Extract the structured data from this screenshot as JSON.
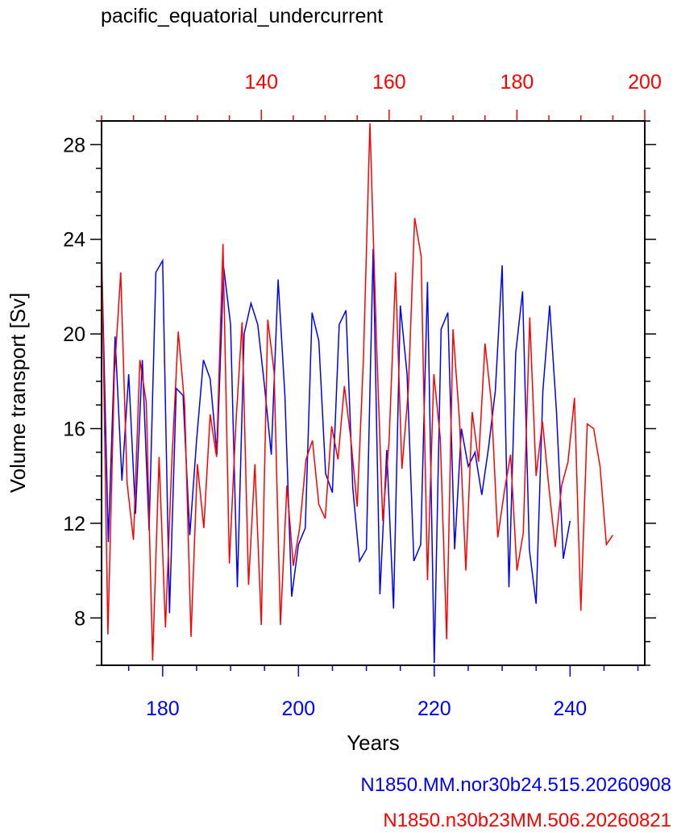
{
  "chart_data": {
    "type": "line",
    "title": "pacific_equatorial_undercurrent",
    "xlabel": "Years",
    "ylabel": "Volume transport [Sv]",
    "ylim": [
      6,
      29
    ],
    "y_ticks": [
      8,
      12,
      16,
      20,
      24,
      28
    ],
    "grid": false,
    "colors": {
      "bottom": "#0000ff",
      "top": "#ff0000",
      "axes": "#000000"
    },
    "bottom_axis": {
      "lim": [
        171,
        251
      ],
      "ticks": [
        180,
        200,
        220,
        240
      ]
    },
    "top_axis": {
      "lim": [
        115,
        200
      ],
      "ticks": [
        140,
        160,
        180,
        200
      ]
    },
    "series": [
      {
        "name": "N1850.MM.nor30b24.515.20260908",
        "axis": "bottom",
        "x_start": 171,
        "values": [
          23.5,
          11.2,
          19.9,
          13.8,
          18.3,
          12.4,
          18.9,
          11.7,
          22.6,
          23.1,
          8.2,
          17.7,
          17.4,
          11.5,
          15.5,
          18.9,
          18.1,
          14.9,
          22.8,
          20.4,
          9.3,
          20.0,
          21.3,
          20.4,
          17.8,
          14.9,
          22.3,
          17.4,
          8.9,
          11.1,
          11.8,
          20.9,
          19.7,
          14.1,
          13.3,
          20.4,
          21.0,
          13.5,
          10.4,
          10.9,
          23.6,
          9.0,
          15.1,
          8.4,
          21.2,
          18.3,
          10.4,
          11.1,
          22.2,
          6.1,
          20.2,
          20.9,
          10.9,
          16.0,
          14.4,
          15.0,
          13.2,
          15.2,
          17.6,
          22.9,
          9.3,
          19.2,
          21.8,
          10.9,
          8.6,
          17.6,
          21.2,
          16.7,
          10.5,
          12.1
        ]
      },
      {
        "name": "N1850.n30b23MM.506.20260821",
        "axis": "top",
        "x_start": 115,
        "values": [
          23.9,
          7.3,
          18.3,
          22.6,
          13.7,
          11.3,
          18.9,
          17.1,
          6.2,
          14.8,
          7.6,
          14.6,
          20.1,
          17.0,
          7.2,
          14.5,
          11.8,
          16.6,
          14.8,
          23.8,
          10.3,
          16.1,
          20.5,
          9.4,
          14.5,
          7.7,
          20.6,
          18.4,
          7.7,
          13.6,
          10.2,
          11.8,
          14.7,
          15.5,
          12.8,
          12.2,
          16.1,
          14.7,
          17.8,
          15.6,
          12.7,
          19.1,
          28.9,
          19.8,
          12.1,
          15.5,
          22.6,
          14.3,
          17.6,
          24.9,
          23.3,
          9.6,
          18.3,
          15.6,
          7.1,
          20.2,
          16.4,
          10.0,
          16.7,
          14.6,
          19.6,
          17.1,
          11.4,
          13.3,
          14.9,
          10.0,
          11.6,
          20.7,
          14.0,
          16.3,
          13.5,
          11.0,
          13.6,
          14.6,
          17.3,
          8.3,
          16.2,
          16.0,
          14.4,
          11.1,
          11.5
        ]
      }
    ]
  }
}
